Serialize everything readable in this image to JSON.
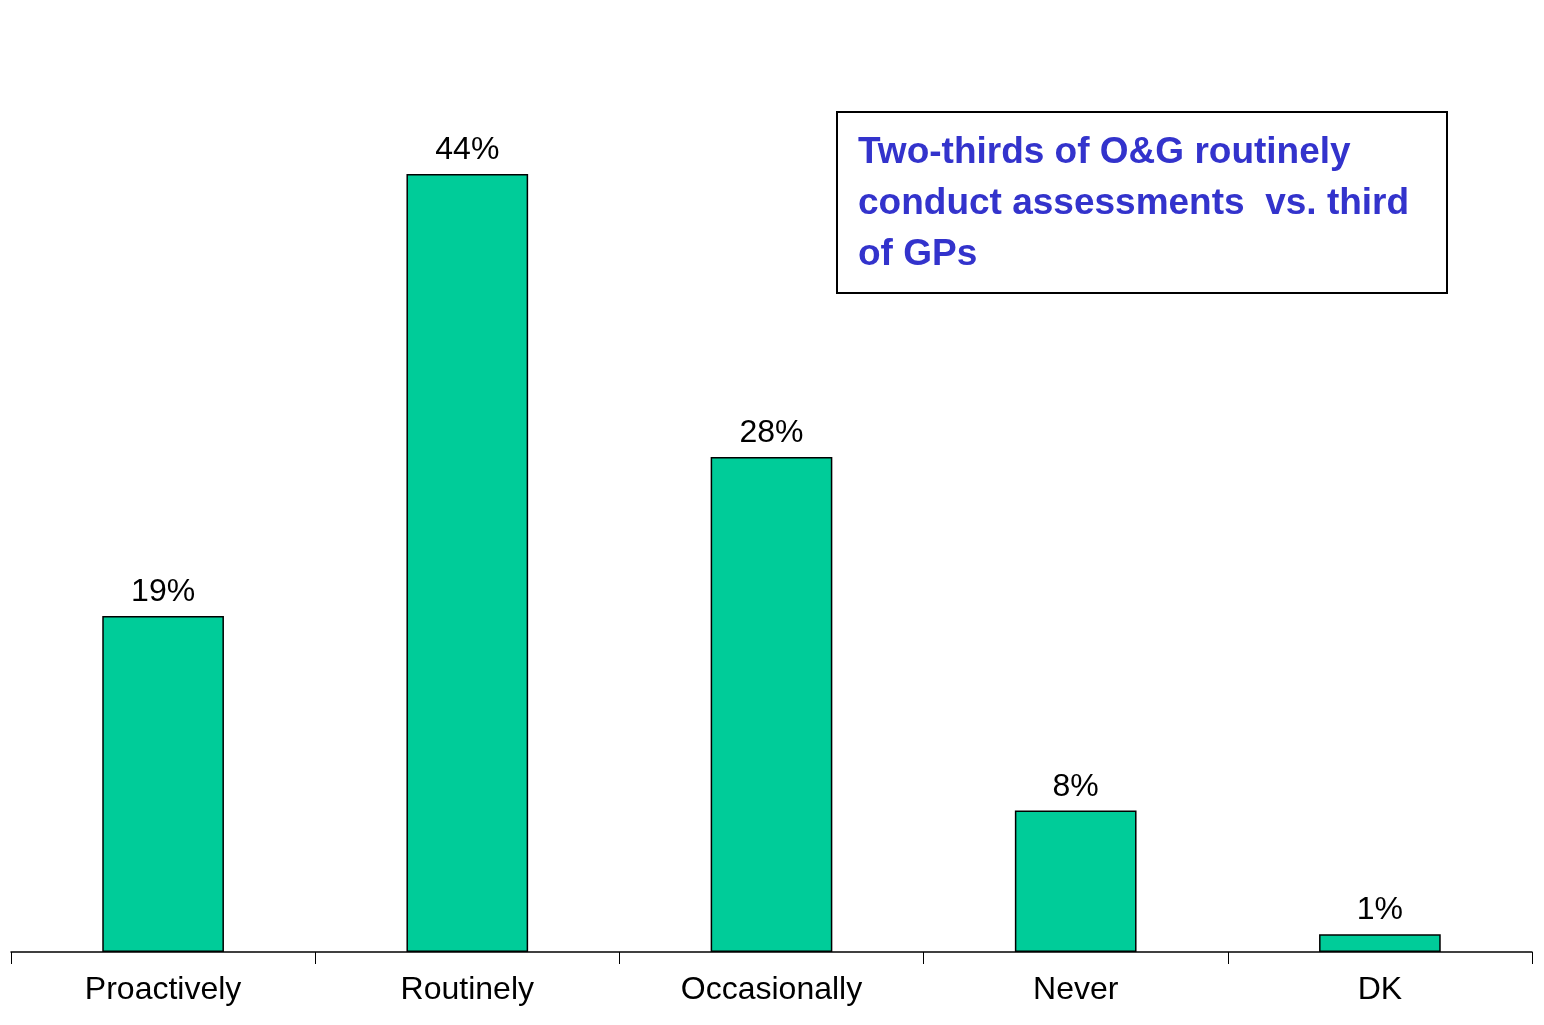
{
  "chart_data": {
    "type": "bar",
    "categories": [
      "Proactively",
      "Routinely",
      "Occasionally",
      "Never",
      "DK"
    ],
    "values": [
      19,
      44,
      28,
      8,
      1
    ],
    "value_labels": [
      "19%",
      "44%",
      "28%",
      "8%",
      "1%"
    ],
    "color": "#00cc99",
    "annotations": [
      "Two-thirds of O&G routinely conduct assessments  vs. third of GPs"
    ]
  }
}
